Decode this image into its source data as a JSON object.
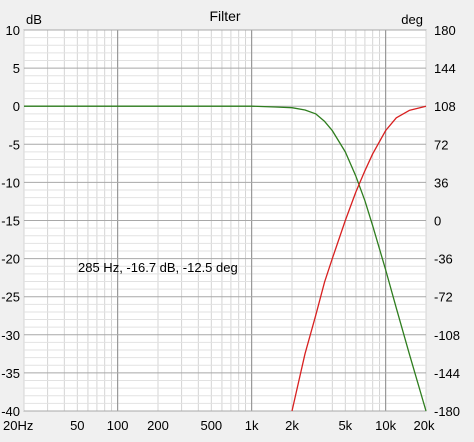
{
  "chart_data": {
    "type": "line",
    "title": "Filter",
    "x_axis": {
      "scale": "log",
      "range": [
        20,
        20000
      ],
      "tick_values": [
        20,
        50,
        100,
        200,
        500,
        1000,
        2000,
        5000,
        10000,
        20000
      ],
      "tick_labels": [
        "20Hz",
        "50",
        "100",
        "200",
        "500",
        "1k",
        "2k",
        "5k",
        "10k",
        "20k"
      ]
    },
    "y_left": {
      "label": "dB",
      "range": [
        -40,
        10
      ],
      "tick_values": [
        10,
        5,
        0,
        -5,
        -10,
        -15,
        -20,
        -25,
        -30,
        -35,
        -40
      ],
      "tick_labels": [
        "10",
        "5",
        "0",
        "-5",
        "-10",
        "-15",
        "-20",
        "-25",
        "-30",
        "-35",
        "-40"
      ]
    },
    "y_right": {
      "label": "deg",
      "range": [
        -180,
        180
      ],
      "tick_values": [
        180,
        144,
        108,
        72,
        36,
        0,
        -36,
        -72,
        -108,
        -144,
        -180
      ],
      "tick_labels": [
        "180",
        "144",
        "108",
        "72",
        "36",
        "0",
        "-36",
        "-72",
        "-108",
        "-144",
        "-180"
      ]
    },
    "grid": true,
    "annotation": "285 Hz, -16.7 dB, -12.5 deg",
    "series": [
      {
        "axis": "left",
        "color": "#2e7d1e",
        "x": [
          20,
          100,
          500,
          1000,
          1500,
          2000,
          2500,
          3000,
          3500,
          4000,
          5000,
          6000,
          7000,
          8000,
          10000,
          12000,
          15000,
          20000
        ],
        "y": [
          0,
          0,
          0,
          0,
          -0.1,
          -0.2,
          -0.5,
          -1.0,
          -2.0,
          -3.2,
          -6.0,
          -9.2,
          -12.4,
          -15.7,
          -21.5,
          -26.5,
          -32.5,
          -40
        ]
      },
      {
        "axis": "right",
        "color": "#d82020",
        "x": [
          2000,
          2500,
          3000,
          3500,
          4000,
          5000,
          6000,
          7000,
          8000,
          10000,
          12000,
          15000,
          20000
        ],
        "y": [
          -180,
          -126,
          -90,
          -58,
          -36,
          0,
          27,
          47,
          63,
          85,
          97,
          104,
          108
        ]
      }
    ]
  }
}
